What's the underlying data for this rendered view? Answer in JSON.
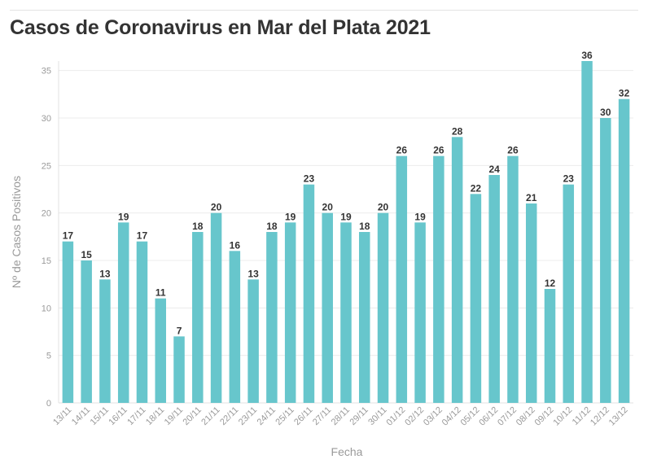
{
  "chart_data": {
    "type": "bar",
    "title": "Casos de Coronavirus en Mar del Plata 2021",
    "xlabel": "Fecha",
    "ylabel": "Nº de Casos Positivos",
    "ylim": [
      0,
      36
    ],
    "yticks": [
      0,
      5,
      10,
      15,
      20,
      25,
      30,
      35
    ],
    "grid": true,
    "bar_color": "#67c6cc",
    "categories": [
      "13/11",
      "14/11",
      "15/11",
      "16/11",
      "17/11",
      "18/11",
      "19/11",
      "20/11",
      "21/11",
      "22/11",
      "23/11",
      "24/11",
      "25/11",
      "26/11",
      "27/11",
      "28/11",
      "29/11",
      "30/11",
      "01/12",
      "02/12",
      "03/12",
      "04/12",
      "05/12",
      "06/12",
      "07/12",
      "08/12",
      "09/12",
      "10/12",
      "11/12",
      "12/12",
      "13/12"
    ],
    "values": [
      17,
      15,
      13,
      19,
      17,
      11,
      7,
      18,
      20,
      16,
      13,
      18,
      19,
      23,
      20,
      19,
      18,
      20,
      26,
      19,
      26,
      28,
      22,
      24,
      26,
      21,
      12,
      23,
      36,
      30,
      32
    ]
  }
}
